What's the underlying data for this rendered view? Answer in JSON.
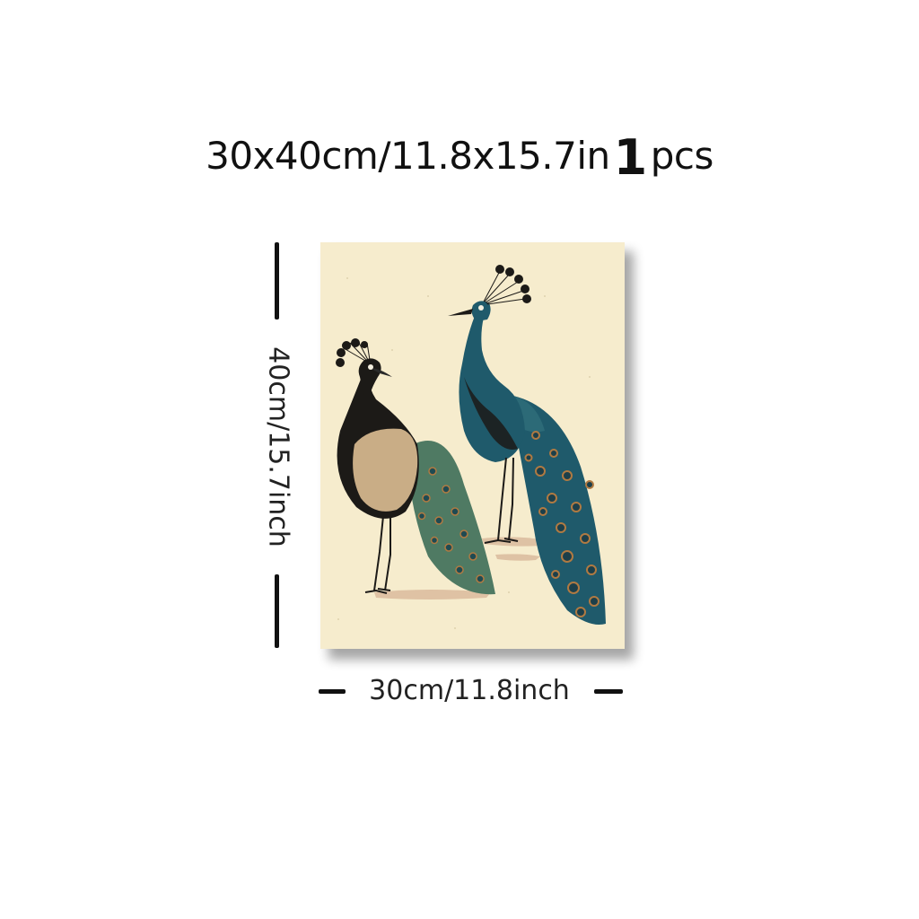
{
  "title": {
    "dimensions": "30x40cm/11.8x15.7in",
    "quantity": "1",
    "unit": "pcs"
  },
  "height_label": "40cm/15.7inch",
  "width_label": "30cm/11.8inch",
  "colors": {
    "canvas_background": "#f6eccd",
    "peacock_blue": "#1f5a6b",
    "peacock_green": "#4f7a63",
    "body_dark": "#1c1a17",
    "wing_tan": "#c9ad86",
    "eye_spot": "#b07a42"
  }
}
